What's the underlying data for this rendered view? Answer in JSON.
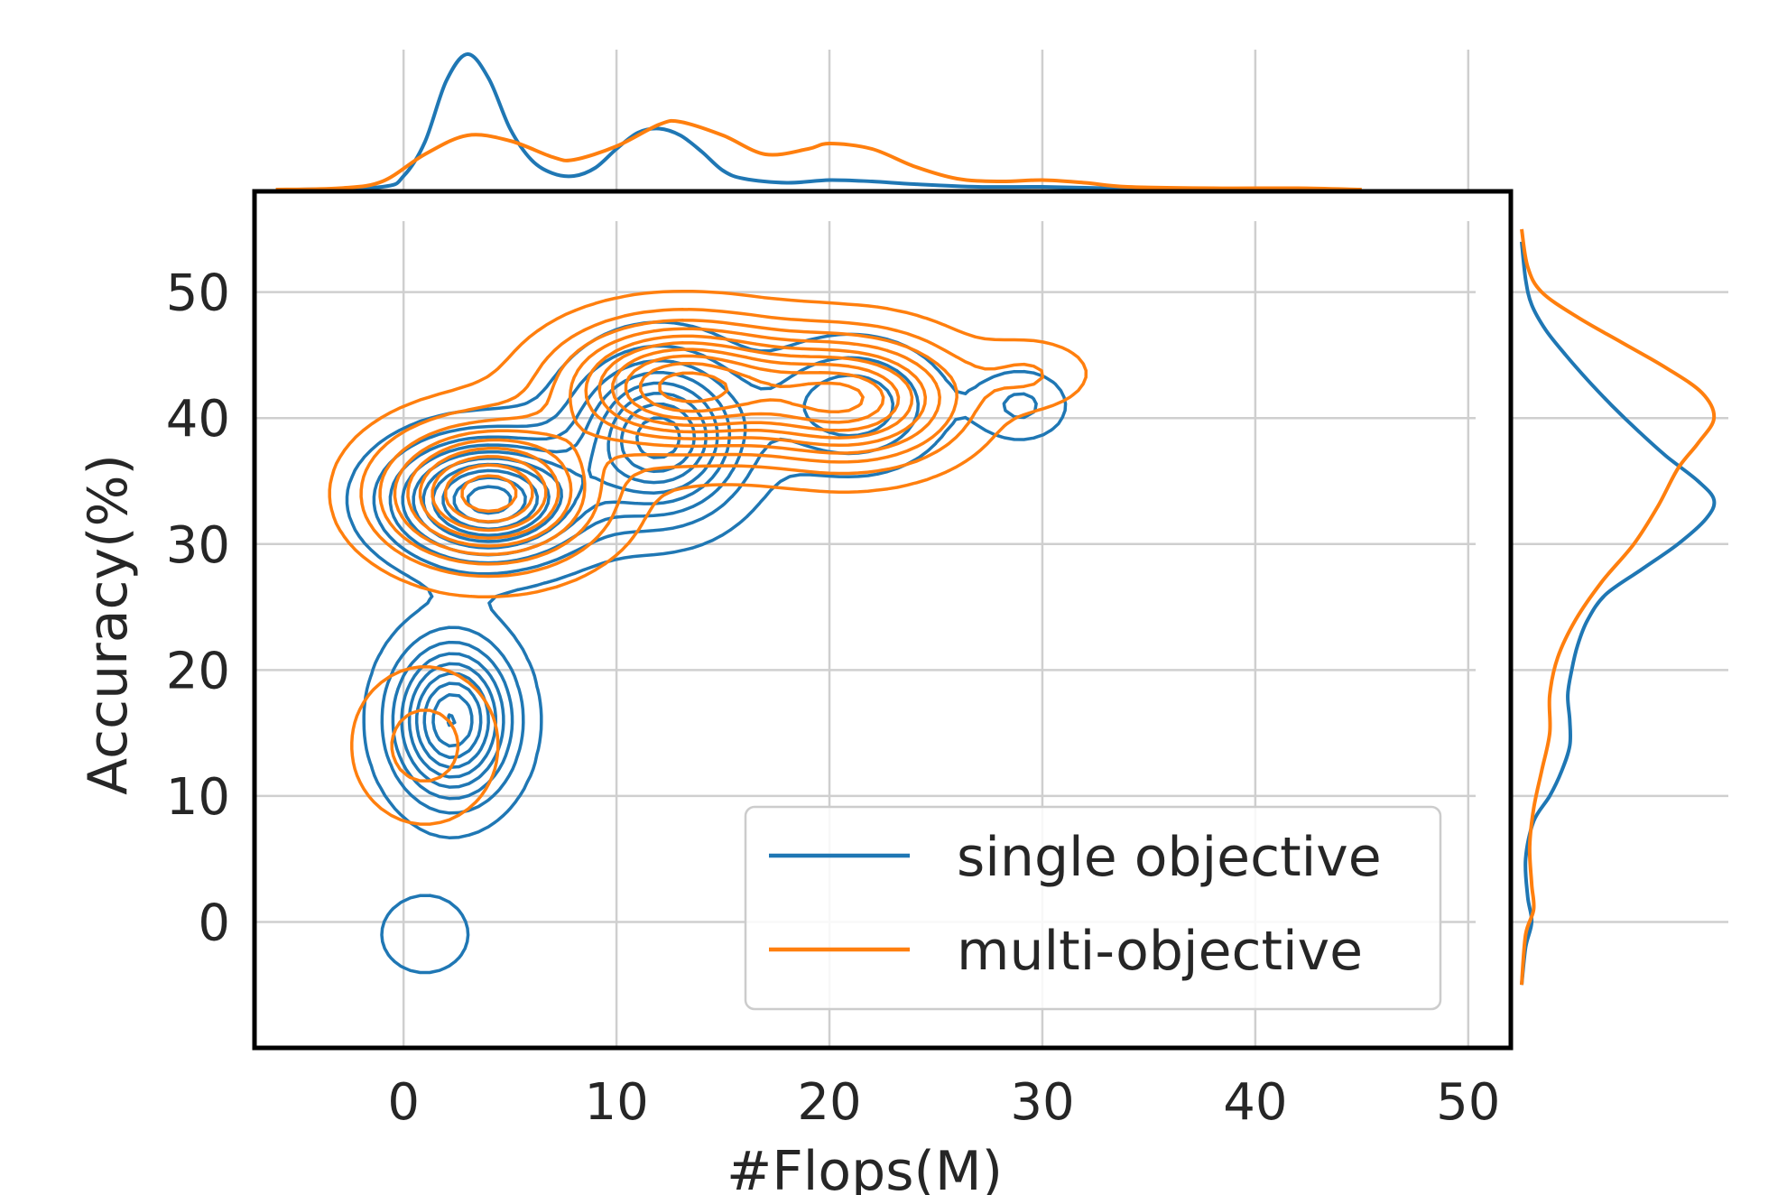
{
  "chart_data": {
    "type": "kde-joint",
    "xlabel": "#Flops(M)",
    "ylabel": "Accuracy(%)",
    "xlim": [
      -7,
      52
    ],
    "ylim": [
      -10,
      58
    ],
    "xticks": [
      0,
      10,
      20,
      30,
      40,
      50
    ],
    "yticks": [
      0,
      10,
      20,
      30,
      40,
      50
    ],
    "grid": true,
    "legend": {
      "placement": "lower-right"
    },
    "series": [
      {
        "name": "single objective",
        "color": "#1f77b4",
        "modes": [
          {
            "x": 4,
            "y": 33.5,
            "sx": 2.8,
            "sy": 3.0,
            "w": 1.0
          },
          {
            "x": 2.3,
            "y": 16,
            "sx": 1.8,
            "sy": 4.0,
            "w": 0.85
          },
          {
            "x": 12,
            "y": 38.5,
            "sx": 2.5,
            "sy": 4.0,
            "w": 0.8
          },
          {
            "x": 21,
            "y": 41,
            "sx": 2.5,
            "sy": 3.0,
            "w": 0.35
          },
          {
            "x": 29,
            "y": 41,
            "sx": 1.4,
            "sy": 1.8,
            "w": 0.18
          },
          {
            "x": 1,
            "y": -1,
            "sx": 2.0,
            "sy": 3.0,
            "w": 0.1
          }
        ],
        "marginal_x": [
          [
            -5,
            0
          ],
          [
            -1,
            0.02
          ],
          [
            0,
            0.1
          ],
          [
            1,
            0.35
          ],
          [
            2,
            0.8
          ],
          [
            3,
            1.0
          ],
          [
            4,
            0.82
          ],
          [
            5,
            0.45
          ],
          [
            6,
            0.22
          ],
          [
            7,
            0.12
          ],
          [
            8,
            0.1
          ],
          [
            9,
            0.16
          ],
          [
            10,
            0.3
          ],
          [
            11,
            0.42
          ],
          [
            12,
            0.45
          ],
          [
            13,
            0.4
          ],
          [
            14,
            0.28
          ],
          [
            15,
            0.14
          ],
          [
            16,
            0.08
          ],
          [
            18,
            0.05
          ],
          [
            20,
            0.07
          ],
          [
            22,
            0.06
          ],
          [
            24,
            0.04
          ],
          [
            27,
            0.02
          ],
          [
            30,
            0.02
          ],
          [
            33,
            0.01
          ],
          [
            36,
            0
          ]
        ],
        "marginal_y": [
          [
            -5,
            0
          ],
          [
            -2,
            0.02
          ],
          [
            0,
            0.05
          ],
          [
            2,
            0.03
          ],
          [
            5,
            0.02
          ],
          [
            8,
            0.06
          ],
          [
            10,
            0.14
          ],
          [
            12,
            0.2
          ],
          [
            14,
            0.24
          ],
          [
            16,
            0.24
          ],
          [
            18,
            0.23
          ],
          [
            20,
            0.25
          ],
          [
            22,
            0.28
          ],
          [
            24,
            0.33
          ],
          [
            26,
            0.42
          ],
          [
            28,
            0.6
          ],
          [
            30,
            0.78
          ],
          [
            32,
            0.92
          ],
          [
            33.5,
            0.96
          ],
          [
            35,
            0.88
          ],
          [
            37,
            0.72
          ],
          [
            39,
            0.58
          ],
          [
            41,
            0.45
          ],
          [
            43,
            0.33
          ],
          [
            45,
            0.22
          ],
          [
            47,
            0.12
          ],
          [
            49,
            0.05
          ],
          [
            51,
            0.02
          ],
          [
            54,
            0
          ]
        ]
      },
      {
        "name": "multi-objective",
        "color": "#ff7f0e",
        "modes": [
          {
            "x": 4,
            "y": 34,
            "sx": 3.2,
            "sy": 3.5,
            "w": 0.9
          },
          {
            "x": 13,
            "y": 42.5,
            "sx": 3.5,
            "sy": 3.2,
            "w": 0.95
          },
          {
            "x": 21,
            "y": 41.5,
            "sx": 3.2,
            "sy": 3.2,
            "w": 0.8
          },
          {
            "x": 29.5,
            "y": 43.5,
            "sx": 1.8,
            "sy": 1.8,
            "w": 0.15
          },
          {
            "x": 38,
            "y": 44.5,
            "sx": 2.5,
            "sy": 1.8,
            "w": 0.05
          },
          {
            "x": 1,
            "y": 14,
            "sx": 2.2,
            "sy": 4.0,
            "w": 0.2
          }
        ],
        "marginal_x": [
          [
            -6,
            0
          ],
          [
            -3,
            0.01
          ],
          [
            -1,
            0.06
          ],
          [
            1,
            0.26
          ],
          [
            3,
            0.4
          ],
          [
            5,
            0.36
          ],
          [
            7,
            0.24
          ],
          [
            8,
            0.22
          ],
          [
            10,
            0.32
          ],
          [
            12,
            0.48
          ],
          [
            13,
            0.5
          ],
          [
            15,
            0.4
          ],
          [
            17,
            0.26
          ],
          [
            19,
            0.3
          ],
          [
            20,
            0.34
          ],
          [
            22,
            0.3
          ],
          [
            24,
            0.17
          ],
          [
            26,
            0.08
          ],
          [
            28,
            0.06
          ],
          [
            30,
            0.07
          ],
          [
            32,
            0.05
          ],
          [
            34,
            0.02
          ],
          [
            38,
            0.01
          ],
          [
            42,
            0.01
          ],
          [
            45,
            0
          ]
        ],
        "marginal_y": [
          [
            -5,
            0
          ],
          [
            -1,
            0.02
          ],
          [
            1,
            0.06
          ],
          [
            3,
            0.05
          ],
          [
            6,
            0.04
          ],
          [
            9,
            0.06
          ],
          [
            12,
            0.1
          ],
          [
            15,
            0.14
          ],
          [
            18,
            0.14
          ],
          [
            21,
            0.18
          ],
          [
            24,
            0.27
          ],
          [
            27,
            0.4
          ],
          [
            30,
            0.56
          ],
          [
            33,
            0.68
          ],
          [
            36,
            0.78
          ],
          [
            38,
            0.88
          ],
          [
            40,
            0.96
          ],
          [
            42,
            0.9
          ],
          [
            44,
            0.72
          ],
          [
            46,
            0.5
          ],
          [
            48,
            0.28
          ],
          [
            50,
            0.1
          ],
          [
            52,
            0.03
          ],
          [
            55,
            0
          ]
        ]
      }
    ]
  }
}
